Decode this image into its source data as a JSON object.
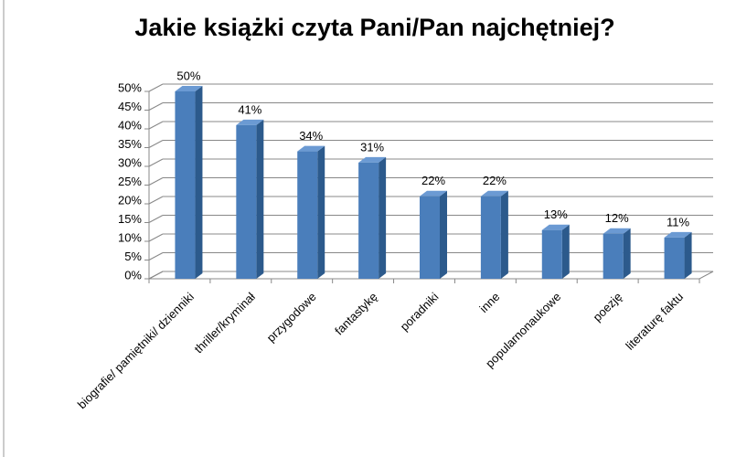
{
  "chart_data": {
    "type": "bar3d",
    "title": "Jakie książki czyta Pani/Pan najchętniej?",
    "categories": [
      "biografie/ pamiętniki/ dzienniki",
      "thriller/kryminał",
      "przygodowe",
      "fantastykę",
      "poradniki",
      "inne",
      "popularnonaukowe",
      "poezję",
      "literaturę faktu"
    ],
    "values": [
      50,
      41,
      34,
      31,
      22,
      22,
      13,
      12,
      11
    ],
    "value_labels": [
      "50%",
      "41%",
      "34%",
      "31%",
      "22%",
      "22%",
      "13%",
      "12%",
      "11%"
    ],
    "color": "#4a7ebb",
    "ylim": [
      0,
      50
    ],
    "yticks": [
      {
        "value": 0,
        "label": "0%"
      },
      {
        "value": 5,
        "label": "5%"
      },
      {
        "value": 10,
        "label": "10%"
      },
      {
        "value": 15,
        "label": "15%"
      },
      {
        "value": 20,
        "label": "20%"
      },
      {
        "value": 25,
        "label": "25%"
      },
      {
        "value": 30,
        "label": "30%"
      },
      {
        "value": 35,
        "label": "35%"
      },
      {
        "value": 40,
        "label": "40%"
      },
      {
        "value": 45,
        "label": "45%"
      },
      {
        "value": 50,
        "label": "50%"
      }
    ],
    "grid": true
  }
}
